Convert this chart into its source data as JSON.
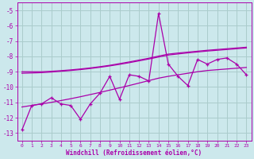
{
  "xlabel": "Windchill (Refroidissement éolien,°C)",
  "background_color": "#cce8ec",
  "grid_color": "#aacccc",
  "line_color": "#aa00aa",
  "x": [
    0,
    1,
    2,
    3,
    4,
    5,
    6,
    7,
    8,
    9,
    10,
    11,
    12,
    13,
    14,
    15,
    16,
    17,
    18,
    19,
    20,
    21,
    22,
    23
  ],
  "y_main": [
    -12.8,
    -11.2,
    -11.1,
    -10.7,
    -11.1,
    -11.2,
    -12.1,
    -11.1,
    -10.4,
    -9.3,
    -10.8,
    -9.2,
    -9.3,
    -9.6,
    -5.2,
    -8.5,
    -9.3,
    -9.9,
    -8.2,
    -8.5,
    -8.2,
    -8.1,
    -8.5,
    -9.2
  ],
  "y_smooth_top1": [
    -9.0,
    -9.0,
    -9.0,
    -8.97,
    -8.93,
    -8.88,
    -8.82,
    -8.75,
    -8.67,
    -8.58,
    -8.47,
    -8.36,
    -8.24,
    -8.12,
    -7.98,
    -7.85,
    -7.78,
    -7.72,
    -7.66,
    -7.6,
    -7.55,
    -7.5,
    -7.45,
    -7.4
  ],
  "y_smooth_top2": [
    -9.1,
    -9.08,
    -9.06,
    -9.02,
    -8.97,
    -8.92,
    -8.86,
    -8.79,
    -8.71,
    -8.62,
    -8.52,
    -8.41,
    -8.29,
    -8.17,
    -8.04,
    -7.91,
    -7.84,
    -7.77,
    -7.71,
    -7.65,
    -7.6,
    -7.55,
    -7.5,
    -7.45
  ],
  "y_smooth_lower": [
    -11.3,
    -11.2,
    -11.1,
    -11.0,
    -10.88,
    -10.76,
    -10.63,
    -10.49,
    -10.35,
    -10.2,
    -10.05,
    -9.9,
    -9.74,
    -9.58,
    -9.42,
    -9.3,
    -9.2,
    -9.1,
    -9.0,
    -8.92,
    -8.87,
    -8.82,
    -8.77,
    -8.72
  ],
  "ylim": [
    -13.5,
    -4.5
  ],
  "yticks": [
    -13,
    -12,
    -11,
    -10,
    -9,
    -8,
    -7,
    -6,
    -5
  ],
  "xlim": [
    -0.5,
    23.5
  ],
  "xticks": [
    0,
    1,
    2,
    3,
    4,
    5,
    6,
    7,
    8,
    9,
    10,
    11,
    12,
    13,
    14,
    15,
    16,
    17,
    18,
    19,
    20,
    21,
    22,
    23
  ]
}
